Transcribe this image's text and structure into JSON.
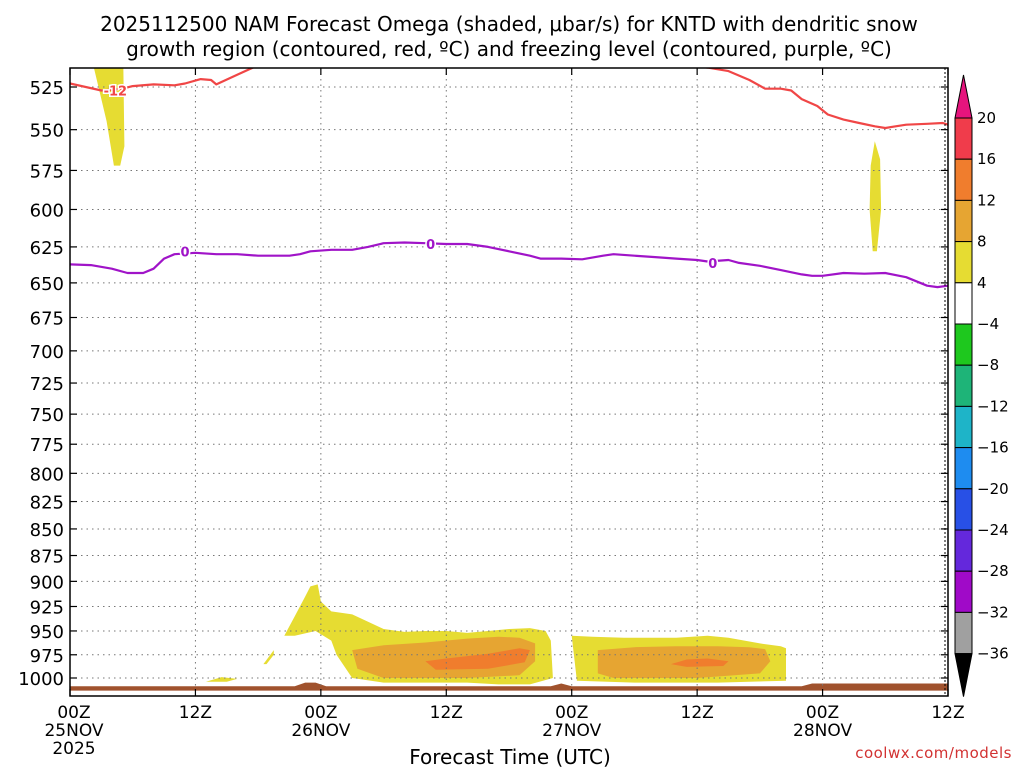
{
  "chart_data": {
    "type": "heatmap",
    "title_line1": "2025112500 NAM Forecast Omega (shaded, μbar/s) for KNTD with dendritic snow",
    "title_line2": "growth region (contoured, red, ºC) and freezing level (contoured, purple, ºC)",
    "xlabel": "Forecast Time (UTC)",
    "ylabel": "",
    "credit": "coolwx.com/models",
    "x_unit": "hours from 2025-11-25 00Z",
    "xlim": [
      0,
      84
    ],
    "ylim": [
      1015,
      512
    ],
    "x_ticks": [
      {
        "x": 0,
        "label": "00Z",
        "label2": "25NOV",
        "label3": "2025"
      },
      {
        "x": 12,
        "label": "12Z",
        "label2": "",
        "label3": ""
      },
      {
        "x": 24,
        "label": "00Z",
        "label2": "26NOV",
        "label3": ""
      },
      {
        "x": 36,
        "label": "12Z",
        "label2": "",
        "label3": ""
      },
      {
        "x": 48,
        "label": "00Z",
        "label2": "27NOV",
        "label3": ""
      },
      {
        "x": 60,
        "label": "12Z",
        "label2": "",
        "label3": ""
      },
      {
        "x": 72,
        "label": "00Z",
        "label2": "28NOV",
        "label3": ""
      },
      {
        "x": 84,
        "label": "12Z",
        "label2": "",
        "label3": ""
      }
    ],
    "y_ticks": [
      525,
      550,
      575,
      600,
      625,
      650,
      675,
      700,
      725,
      750,
      775,
      800,
      825,
      850,
      875,
      900,
      925,
      950,
      975,
      1000
    ],
    "grid": true,
    "colorbar": {
      "position": "right",
      "labels": [
        "20",
        "16",
        "12",
        "8",
        "4",
        "−4",
        "−8",
        "−12",
        "−16",
        "−20",
        "−24",
        "−28",
        "−32",
        "−36"
      ],
      "bins": [
        {
          "range": [
            16,
            20
          ],
          "color": "#f03c4b"
        },
        {
          "range": [
            12,
            16
          ],
          "color": "#f07d2d"
        },
        {
          "range": [
            8,
            12
          ],
          "color": "#e6a532"
        },
        {
          "range": [
            4,
            8
          ],
          "color": "#e6dc32"
        },
        {
          "range": [
            -4,
            4
          ],
          "color": "#ffffff"
        },
        {
          "range": [
            -8,
            -4
          ],
          "color": "#1ec81e"
        },
        {
          "range": [
            -12,
            -8
          ],
          "color": "#1eb478"
        },
        {
          "range": [
            -16,
            -12
          ],
          "color": "#1eb4c8"
        },
        {
          "range": [
            -20,
            -16
          ],
          "color": "#1e8cf0"
        },
        {
          "range": [
            -24,
            -20
          ],
          "color": "#2850e6"
        },
        {
          "range": [
            -28,
            -24
          ],
          "color": "#6428dc"
        },
        {
          "range": [
            -32,
            -28
          ],
          "color": "#a00ac8"
        },
        {
          "range": [
            -36,
            -32
          ],
          "color": "#a0a0a0"
        }
      ],
      "above_color": "#e6147d",
      "below_color": "#000000"
    },
    "colors": {
      "snow_growth_contour": "#f04646",
      "freezing_level_contour": "#a014c8",
      "terrain": "#a0522d",
      "grid": "#777777"
    },
    "snow_growth_contour": {
      "label": "-12",
      "label_at": [
        3,
        527
      ],
      "segments": [
        [
          [
            0,
            523
          ],
          [
            3,
            527
          ],
          [
            5,
            526
          ],
          [
            6,
            524.5
          ],
          [
            8,
            523.5
          ],
          [
            10,
            524
          ],
          [
            11,
            523
          ],
          [
            12.5,
            520.5
          ],
          [
            13.5,
            521
          ],
          [
            14,
            523.5
          ],
          [
            16,
            518
          ],
          [
            17.5,
            514
          ],
          [
            18,
            512
          ]
        ],
        [
          [
            58,
            512
          ],
          [
            61,
            514
          ],
          [
            63,
            516
          ],
          [
            65,
            521
          ],
          [
            66.5,
            526
          ],
          [
            68,
            526
          ],
          [
            69,
            527
          ],
          [
            70,
            532
          ],
          [
            71.5,
            536
          ],
          [
            72.5,
            541
          ],
          [
            74,
            544
          ],
          [
            75.5,
            546
          ],
          [
            77,
            548
          ],
          [
            78,
            549
          ],
          [
            79,
            548
          ],
          [
            80,
            547
          ],
          [
            82,
            546.5
          ],
          [
            83.5,
            546
          ],
          [
            84,
            547
          ]
        ]
      ]
    },
    "freezing_level_contour": {
      "label": "0",
      "labels_at": [
        [
          11,
          628
        ],
        [
          34.5,
          623
        ],
        [
          61.5,
          636
        ]
      ],
      "points": [
        [
          0,
          637
        ],
        [
          2,
          637.5
        ],
        [
          4,
          640
        ],
        [
          5.5,
          643
        ],
        [
          7,
          643
        ],
        [
          8,
          640
        ],
        [
          9,
          633
        ],
        [
          10,
          630
        ],
        [
          12,
          629
        ],
        [
          14,
          630
        ],
        [
          16,
          630
        ],
        [
          18,
          631
        ],
        [
          21,
          631
        ],
        [
          22,
          630
        ],
        [
          23,
          628
        ],
        [
          25,
          627
        ],
        [
          27,
          627
        ],
        [
          28.5,
          625
        ],
        [
          30,
          622.5
        ],
        [
          32,
          622
        ],
        [
          34,
          622.5
        ],
        [
          36,
          623
        ],
        [
          38,
          623
        ],
        [
          40,
          625
        ],
        [
          42,
          628
        ],
        [
          44,
          631
        ],
        [
          45,
          633
        ],
        [
          47,
          633
        ],
        [
          49,
          633.5
        ],
        [
          51,
          631
        ],
        [
          52,
          630
        ],
        [
          54,
          631
        ],
        [
          56,
          632
        ],
        [
          58,
          633
        ],
        [
          60,
          634
        ],
        [
          61,
          635
        ],
        [
          63,
          634
        ],
        [
          64,
          636
        ],
        [
          66,
          638
        ],
        [
          68,
          641
        ],
        [
          70,
          644
        ],
        [
          71,
          645
        ],
        [
          72,
          645
        ],
        [
          74,
          643
        ],
        [
          76,
          643.5
        ],
        [
          78,
          643
        ],
        [
          80,
          646
        ],
        [
          82,
          652
        ],
        [
          83,
          653
        ],
        [
          84,
          652
        ]
      ]
    },
    "omega_shading": [
      {
        "bin": "4-8",
        "polygon": [
          [
            2.2,
            512
          ],
          [
            5.1,
            512
          ],
          [
            5.2,
            560
          ],
          [
            4.8,
            572
          ],
          [
            4.2,
            572
          ],
          [
            3.5,
            545
          ]
        ]
      },
      {
        "bin": "4-8",
        "polygon": [
          [
            77,
            557
          ],
          [
            77.5,
            568
          ],
          [
            77.6,
            600
          ],
          [
            77.2,
            628
          ],
          [
            76.8,
            628
          ],
          [
            76.5,
            600
          ],
          [
            76.6,
            572
          ]
        ]
      },
      {
        "bin": "4-8",
        "polygon": [
          [
            13,
            1004
          ],
          [
            14.5,
            999
          ],
          [
            16,
            1001
          ],
          [
            15,
            1004
          ]
        ]
      },
      {
        "bin": "4-8",
        "polygon": [
          [
            18.5,
            985
          ],
          [
            19.5,
            970
          ],
          [
            19.5,
            975
          ],
          [
            18.8,
            985
          ]
        ]
      },
      {
        "bin": "4-8",
        "polygon": [
          [
            20.5,
            955
          ],
          [
            21.5,
            935
          ],
          [
            22.5,
            915
          ],
          [
            23,
            905
          ],
          [
            23.7,
            903
          ],
          [
            24,
            920
          ],
          [
            25,
            930
          ],
          [
            27,
            933
          ],
          [
            28,
            938
          ],
          [
            30,
            948
          ],
          [
            32,
            951
          ],
          [
            34,
            950
          ],
          [
            36,
            950
          ],
          [
            38,
            952
          ],
          [
            40,
            950
          ],
          [
            42,
            948
          ],
          [
            44,
            947
          ],
          [
            45.5,
            950
          ],
          [
            46,
            960
          ],
          [
            46.2,
            1000
          ],
          [
            44,
            1007
          ],
          [
            41,
            1007
          ],
          [
            38,
            1005
          ],
          [
            30,
            1005
          ],
          [
            27,
            1000
          ],
          [
            25.5,
            975
          ],
          [
            25,
            960
          ],
          [
            23.5,
            950
          ],
          [
            21.5,
            955
          ]
        ]
      },
      {
        "bin": "4-8",
        "polygon": [
          [
            48,
            955
          ],
          [
            50,
            956
          ],
          [
            53,
            957
          ],
          [
            58,
            957
          ],
          [
            61,
            955
          ],
          [
            63,
            957
          ],
          [
            66,
            963
          ],
          [
            68,
            966
          ],
          [
            68.5,
            968
          ],
          [
            68.5,
            1003
          ],
          [
            62,
            1005
          ],
          [
            54,
            1005
          ],
          [
            48.5,
            1003
          ]
        ]
      },
      {
        "bin": "8-12",
        "polygon": [
          [
            27,
            970
          ],
          [
            30,
            965
          ],
          [
            34,
            962
          ],
          [
            38,
            958
          ],
          [
            41,
            956
          ],
          [
            43,
            957
          ],
          [
            44.5,
            963
          ],
          [
            44.5,
            982
          ],
          [
            43,
            997
          ],
          [
            38,
            1000
          ],
          [
            30,
            1000
          ],
          [
            27.5,
            990
          ]
        ]
      },
      {
        "bin": "8-12",
        "polygon": [
          [
            50.5,
            970
          ],
          [
            54,
            967
          ],
          [
            58,
            966
          ],
          [
            62,
            966
          ],
          [
            65,
            967
          ],
          [
            66.5,
            969
          ],
          [
            67,
            982
          ],
          [
            66,
            995
          ],
          [
            60,
            1000
          ],
          [
            52,
            1000
          ],
          [
            50.5,
            995
          ]
        ]
      },
      {
        "bin": "12-16",
        "polygon": [
          [
            34,
            982
          ],
          [
            36,
            979
          ],
          [
            40,
            974
          ],
          [
            43,
            968
          ],
          [
            44,
            970
          ],
          [
            43.5,
            983
          ],
          [
            40,
            990
          ],
          [
            35,
            991
          ]
        ]
      },
      {
        "bin": "12-16",
        "polygon": [
          [
            57.5,
            985
          ],
          [
            59,
            980
          ],
          [
            61,
            979
          ],
          [
            63,
            982
          ],
          [
            62.5,
            987
          ],
          [
            59,
            988
          ]
        ]
      }
    ],
    "terrain_top": [
      [
        0,
        1009
      ],
      [
        21.5,
        1009
      ],
      [
        22.5,
        1005
      ],
      [
        23.5,
        1005
      ],
      [
        24.5,
        1009
      ],
      [
        46,
        1009
      ],
      [
        47,
        1006
      ],
      [
        48,
        1009
      ],
      [
        70,
        1009
      ],
      [
        71,
        1006
      ],
      [
        84,
        1006
      ]
    ],
    "terrain_bottom": 1014
  }
}
